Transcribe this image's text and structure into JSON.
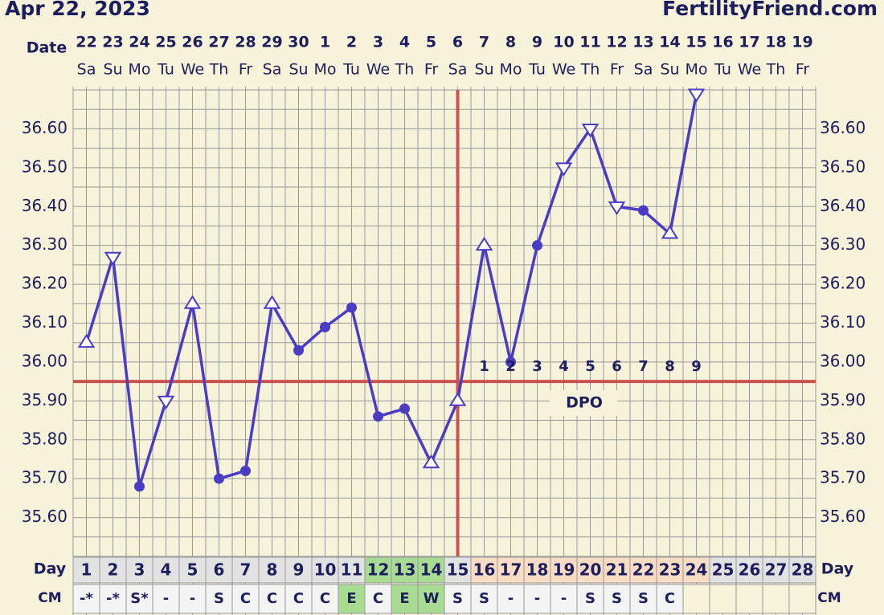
{
  "chart_data": {
    "type": "line",
    "title": "Apr 22, 2023",
    "source": "FertilityFriend.com",
    "date_label": "Date",
    "day_label": "Day",
    "cm_label": "CM",
    "dpo_label": "DPO",
    "dates": [
      "22",
      "23",
      "24",
      "25",
      "26",
      "27",
      "28",
      "29",
      "30",
      "1",
      "2",
      "3",
      "4",
      "5",
      "6",
      "7",
      "8",
      "9",
      "10",
      "11",
      "12",
      "13",
      "14",
      "15",
      "16",
      "17",
      "18",
      "19"
    ],
    "weekdays": [
      "Sa",
      "Su",
      "Mo",
      "Tu",
      "We",
      "Th",
      "Fr",
      "Sa",
      "Su",
      "Mo",
      "Tu",
      "We",
      "Th",
      "Fr",
      "Sa",
      "Su",
      "Mo",
      "Tu",
      "We",
      "Th",
      "Fr",
      "Sa",
      "Su",
      "Mo",
      "Tu",
      "We",
      "Th",
      "Fr"
    ],
    "categories": [
      1,
      2,
      3,
      4,
      5,
      6,
      7,
      8,
      9,
      10,
      11,
      12,
      13,
      14,
      15,
      16,
      17,
      18,
      19,
      20,
      21,
      22,
      23,
      24,
      25,
      26,
      27,
      28
    ],
    "cm": [
      "-*",
      "-*",
      "S*",
      "-",
      "-",
      "S",
      "C",
      "C",
      "C",
      "C",
      "E",
      "C",
      "E",
      "W",
      "S",
      "S",
      "-",
      "-",
      "-",
      "S",
      "S",
      "S",
      "C",
      null,
      null,
      null,
      null,
      null
    ],
    "dpo": [
      null,
      null,
      null,
      null,
      null,
      null,
      null,
      null,
      null,
      null,
      null,
      null,
      null,
      null,
      null,
      1,
      2,
      3,
      4,
      5,
      6,
      7,
      8,
      9,
      null,
      null,
      null,
      null
    ],
    "series": [
      {
        "color": "#4a3cc4",
        "values": [
          36.05,
          36.27,
          35.68,
          35.9,
          36.15,
          35.7,
          35.72,
          36.15,
          36.03,
          36.09,
          36.14,
          35.86,
          35.88,
          35.74,
          35.9,
          36.3,
          36.0,
          36.3,
          36.5,
          36.6,
          36.4,
          36.39,
          36.33,
          36.69,
          null,
          null,
          null,
          null
        ],
        "markers": [
          "up",
          "down",
          "dot",
          "down",
          "up",
          "dot",
          "dot",
          "up",
          "dot",
          "dot",
          "dot",
          "dot",
          "dot",
          "up",
          "up",
          "up",
          "dot",
          "dot",
          "down",
          "down",
          "down",
          "dot",
          "up",
          "down",
          null,
          null,
          null,
          null
        ]
      }
    ],
    "coverline": 35.95,
    "coverline_color": "#c9534f",
    "ovulation_day": 15,
    "fertile_days": [
      12,
      13,
      14
    ],
    "cm_fertile_days": [
      11,
      13,
      14
    ],
    "ylim": [
      35.5,
      36.7
    ],
    "yticks": [
      {
        "value": 35.6,
        "label": "35.60"
      },
      {
        "value": 35.7,
        "label": "35.70"
      },
      {
        "value": 35.8,
        "label": "35.80"
      },
      {
        "value": 35.9,
        "label": "35.90"
      },
      {
        "value": 36.0,
        "label": "36.00"
      },
      {
        "value": 36.1,
        "label": "36.10"
      },
      {
        "value": 36.2,
        "label": "36.20"
      },
      {
        "value": 36.3,
        "label": "36.30"
      },
      {
        "value": 36.4,
        "label": "36.40"
      },
      {
        "value": 36.5,
        "label": "36.50"
      },
      {
        "value": 36.6,
        "label": "36.60"
      }
    ],
    "minor_yticks": [
      35.55,
      35.65,
      35.75,
      35.85,
      35.95,
      36.05,
      36.15,
      36.25,
      36.35,
      36.45,
      36.55,
      36.65
    ],
    "grid": true
  }
}
